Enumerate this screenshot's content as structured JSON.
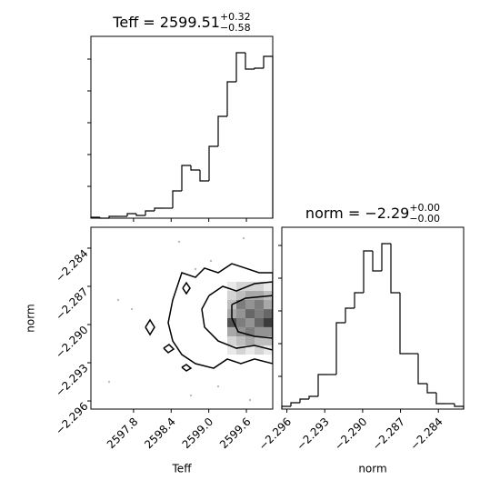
{
  "chart_data": [
    {
      "type": "histogram",
      "title": "Teff = 2599.51",
      "title_sup": "+0.32",
      "title_sub": "−0.58",
      "bins": [
        2597.12,
        2597.265,
        2597.41,
        2597.555,
        2597.7,
        2597.845,
        2597.99,
        2598.135,
        2598.28,
        2598.425,
        2598.57,
        2598.715,
        2598.86,
        2599.005,
        2599.15,
        2599.295,
        2599.44,
        2599.585,
        2599.73,
        2599.875,
        2600.02
      ],
      "counts": [
        1,
        0,
        2,
        2,
        5,
        3,
        8,
        11,
        11,
        30,
        58,
        53,
        41,
        79,
        112,
        150,
        182,
        164,
        165,
        178
      ],
      "color": "#000000",
      "xlim": [
        2597.12,
        2600.02
      ],
      "xticks": [
        2597.8,
        2598.4,
        2599.0,
        2599.6
      ],
      "ylim": [
        0,
        200
      ],
      "yticks": [
        35,
        70,
        105,
        140,
        175
      ]
    },
    {
      "type": "density2d",
      "xlabel": "Teff",
      "ylabel": "norm",
      "color": "#000000",
      "xlim": [
        2597.12,
        2600.02
      ],
      "ylim": [
        -2.29664,
        -2.28236
      ],
      "xticks": [
        2597.8,
        2598.4,
        {
          "value": 2599.0,
          "label": "2599.0"
        },
        2599.6
      ],
      "yticks": [
        {
          "value": -2.284,
          "label": "−2.284"
        },
        {
          "value": -2.287,
          "label": "−2.287"
        },
        {
          "value": -2.29,
          "label": "−2.290"
        },
        {
          "value": -2.293,
          "label": "−2.293"
        },
        {
          "value": -2.296,
          "label": "−2.296"
        }
      ],
      "hist2d": {
        "x_edges": [
          2599.295,
          2599.44,
          2599.585,
          2599.73,
          2599.875,
          2600.02
        ],
        "y_edges": [
          -2.28664,
          -2.28736,
          -2.28807,
          -2.28879,
          -2.2895,
          -2.29021,
          -2.29093,
          -2.29164,
          -2.29236
        ],
        "counts": [
          [
            1,
            2,
            2,
            2,
            1
          ],
          [
            2,
            3,
            4,
            4,
            3
          ],
          [
            3,
            6,
            5,
            6,
            4
          ],
          [
            4,
            5,
            7,
            6,
            7
          ],
          [
            8,
            6,
            5,
            7,
            9
          ],
          [
            4,
            5,
            6,
            5,
            5
          ],
          [
            2,
            3,
            4,
            3,
            3
          ],
          [
            1,
            2,
            1,
            2,
            1
          ]
        ],
        "vmax": 10
      },
      "contours": [
        [
          [
            2598.425,
            -2.28807
          ],
          [
            2598.57,
            -2.28593
          ],
          [
            2598.7875,
            -2.28629
          ],
          [
            2598.9325,
            -2.28557
          ],
          [
            2599.15,
            -2.28593
          ],
          [
            2599.3675,
            -2.28522
          ],
          [
            2599.585,
            -2.28557
          ],
          [
            2599.8025,
            -2.28593
          ],
          [
            2600.02,
            -2.28593
          ],
          [
            2600.02,
            -2.29307
          ],
          [
            2599.73,
            -2.29271
          ],
          [
            2599.5125,
            -2.29307
          ],
          [
            2599.295,
            -2.29271
          ],
          [
            2599.0775,
            -2.29343
          ],
          [
            2598.7875,
            -2.29307
          ],
          [
            2598.57,
            -2.29236
          ],
          [
            2598.425,
            -2.29129
          ],
          [
            2598.3525,
            -2.28986
          ],
          [
            2598.425,
            -2.28807
          ]
        ],
        [
          [
            2599.005,
            -2.28772
          ],
          [
            2599.2225,
            -2.287
          ],
          [
            2599.44,
            -2.28736
          ],
          [
            2599.73,
            -2.28679
          ],
          [
            2600.02,
            -2.28664
          ],
          [
            2600.02,
            -2.292
          ],
          [
            2599.73,
            -2.29164
          ],
          [
            2599.44,
            -2.29186
          ],
          [
            2599.15,
            -2.29129
          ],
          [
            2598.9325,
            -2.29021
          ],
          [
            2598.889,
            -2.28879
          ],
          [
            2599.005,
            -2.28772
          ]
        ],
        [
          [
            2599.3675,
            -2.28843
          ],
          [
            2599.585,
            -2.28793
          ],
          [
            2600.02,
            -2.28772
          ],
          [
            2600.02,
            -2.29107
          ],
          [
            2599.73,
            -2.29093
          ],
          [
            2599.469,
            -2.29057
          ],
          [
            2599.3675,
            -2.2895
          ],
          [
            2599.3675,
            -2.28843
          ]
        ],
        [
          [
            2597.99,
            -2.29021
          ],
          [
            2598.0625,
            -2.28964
          ],
          [
            2598.135,
            -2.29021
          ],
          [
            2598.0625,
            -2.29079
          ],
          [
            2597.99,
            -2.29021
          ]
        ],
        [
          [
            2598.28,
            -2.29186
          ],
          [
            2598.367,
            -2.29157
          ],
          [
            2598.4395,
            -2.29193
          ],
          [
            2598.3525,
            -2.29221
          ],
          [
            2598.28,
            -2.29186
          ]
        ],
        [
          [
            2598.5845,
            -2.28714
          ],
          [
            2598.6425,
            -2.28672
          ],
          [
            2598.7005,
            -2.28714
          ],
          [
            2598.6425,
            -2.28757
          ],
          [
            2598.5845,
            -2.28714
          ]
        ],
        [
          [
            2598.57,
            -2.29336
          ],
          [
            2598.6425,
            -2.29314
          ],
          [
            2598.715,
            -2.29343
          ],
          [
            2598.6425,
            -2.29364
          ],
          [
            2598.57,
            -2.29336
          ]
        ]
      ],
      "points": {
        "x": [
          2598.5265,
          2599.034,
          2598.7875,
          2599.556,
          2597.7725,
          2597.41,
          2599.15,
          2598.715,
          2597.555,
          2599.6575
        ],
        "y": [
          -2.2835,
          -2.285,
          -2.28564,
          -2.28322,
          -2.28879,
          -2.2945,
          -2.29486,
          -2.29557,
          -2.28807,
          -2.29593
        ]
      }
    },
    {
      "type": "histogram",
      "title": "norm = −2.29",
      "title_sup": "+0.00",
      "title_sub": "−0.00",
      "xlabel": "norm",
      "bins": [
        -2.2964,
        -2.29568,
        -2.29496,
        -2.29424,
        -2.29352,
        -2.2928,
        -2.29208,
        -2.29136,
        -2.29064,
        -2.28992,
        -2.2892,
        -2.28848,
        -2.28776,
        -2.28704,
        -2.28632,
        -2.2856,
        -2.28488,
        -2.28416,
        -2.28344,
        -2.28272,
        -2.282
      ],
      "counts": [
        3,
        7,
        11,
        14,
        38,
        38,
        95,
        111,
        128,
        174,
        152,
        182,
        128,
        61,
        61,
        28,
        18,
        6,
        6,
        3
      ],
      "color": "#000000",
      "xlim": [
        -2.2964,
        -2.282
      ],
      "xticks": [
        {
          "value": -2.296,
          "label": "−2.296"
        },
        {
          "value": -2.293,
          "label": "−2.293"
        },
        {
          "value": -2.29,
          "label": "−2.290"
        },
        {
          "value": -2.287,
          "label": "−2.287"
        },
        {
          "value": -2.284,
          "label": "−2.284"
        }
      ],
      "ylim": [
        0,
        200
      ],
      "yticks": [
        36,
        72,
        108,
        144,
        180
      ]
    }
  ]
}
